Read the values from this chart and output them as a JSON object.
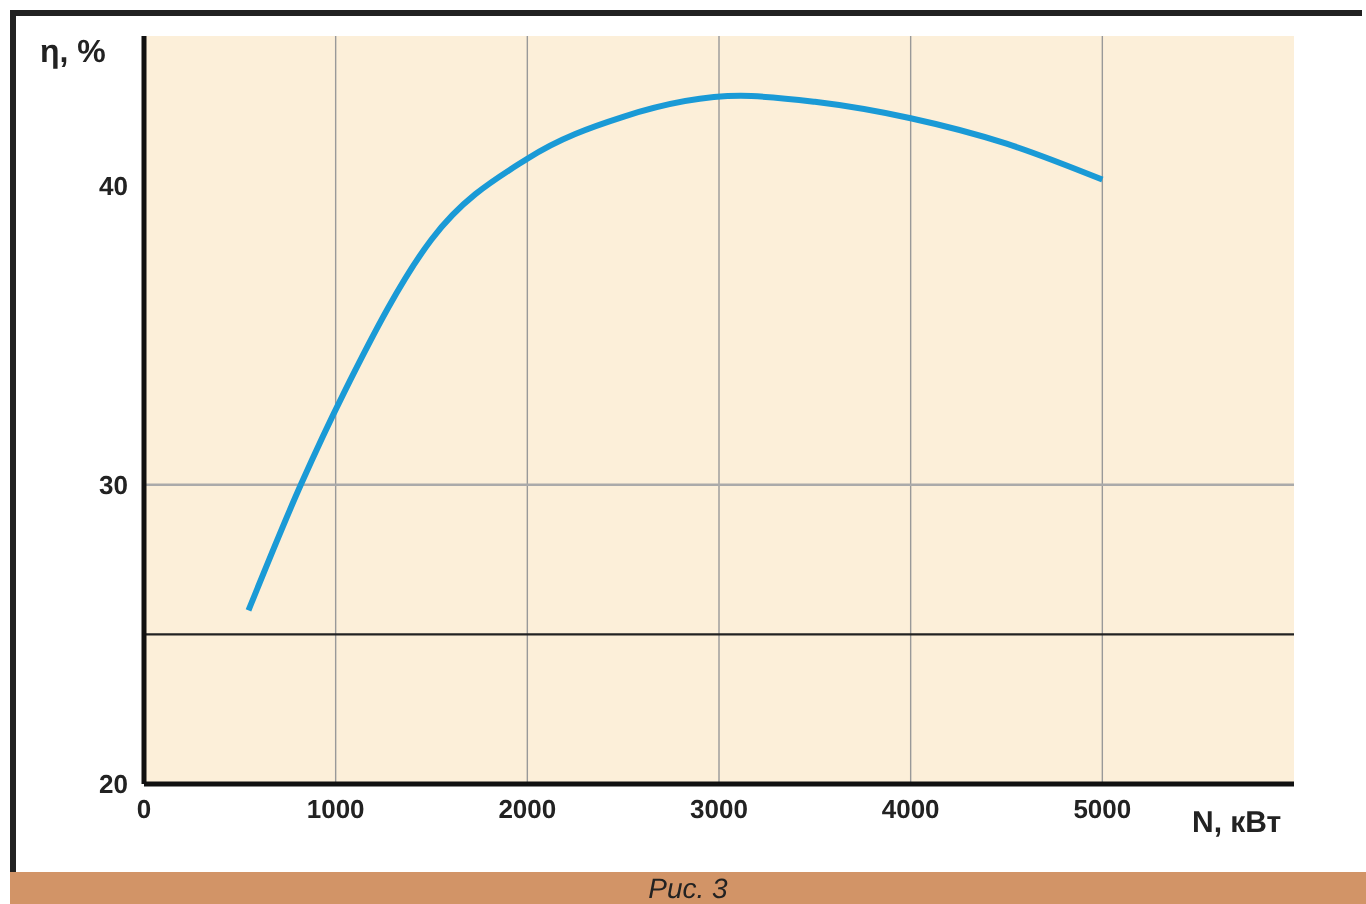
{
  "chart_data": {
    "type": "line",
    "xlabel": "N, кВт",
    "ylabel": "η, %",
    "annotations": [
      "Рис. 3"
    ],
    "x": [
      545,
      818,
      1045,
      1500,
      2000,
      2500,
      3114,
      3500,
      4000,
      4500,
      5000
    ],
    "series": [
      {
        "color": "#1a9ad6",
        "values": [
          25.8,
          30,
          33.1,
          38.2,
          40.9,
          42.3,
          43.0,
          42.8,
          42.25,
          41.4,
          40.2
        ]
      }
    ],
    "xlim": [
      0,
      6000
    ],
    "xticks": [
      0,
      1000,
      2000,
      3000,
      4000,
      5000
    ],
    "ylim": [
      20,
      45
    ],
    "yticks": [
      20,
      30,
      40
    ],
    "grid": "x",
    "marker": "none",
    "line_style": "solid",
    "ref_lines": [
      {
        "axis": "y",
        "value": 30,
        "color": "#aaaaaa"
      },
      {
        "axis": "y",
        "value": 25,
        "color": "#222222"
      }
    ]
  }
}
